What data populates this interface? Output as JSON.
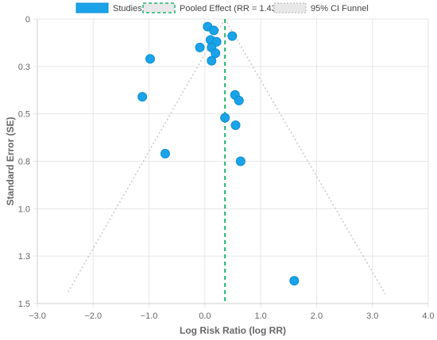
{
  "chart_data": {
    "type": "scatter",
    "title": "",
    "xlabel": "Log Risk Ratio (log RR)",
    "ylabel": "Standard Error (SE)",
    "xlim": [
      -3.0,
      4.0
    ],
    "ylim": [
      0,
      1.5
    ],
    "y_reversed": true,
    "x_ticks": [
      -3.0,
      -2.0,
      -1.0,
      0.0,
      1.0,
      2.0,
      3.0,
      4.0
    ],
    "x_tick_labels": [
      "−3.0",
      "−2.0",
      "−1.0",
      "0.0",
      "1.0",
      "2.0",
      "3.0",
      "4.0"
    ],
    "y_ticks": [
      0,
      0.25,
      0.5,
      0.75,
      1.0,
      1.25,
      1.5
    ],
    "y_tick_labels": [
      "0",
      "0.3",
      "0.5",
      "0.8",
      "1.0",
      "1.3",
      "1.5"
    ],
    "grid": true,
    "legend_position": "top",
    "pooled_effect": 0.36,
    "funnel": {
      "apex": [
        0.36,
        0.0
      ],
      "left_base": [
        -2.47,
        1.45
      ],
      "right_base": [
        3.23,
        1.45
      ]
    },
    "series": [
      {
        "name": "Studies",
        "color": "#1aa3e8",
        "points": [
          {
            "x": 0.05,
            "y": 0.04
          },
          {
            "x": 0.16,
            "y": 0.06
          },
          {
            "x": 0.49,
            "y": 0.09
          },
          {
            "x": 0.1,
            "y": 0.11
          },
          {
            "x": 0.21,
            "y": 0.12
          },
          {
            "x": -0.09,
            "y": 0.15
          },
          {
            "x": 0.12,
            "y": 0.15
          },
          {
            "x": 0.19,
            "y": 0.18
          },
          {
            "x": -0.98,
            "y": 0.21
          },
          {
            "x": 0.12,
            "y": 0.22
          },
          {
            "x": 0.54,
            "y": 0.4
          },
          {
            "x": -1.12,
            "y": 0.41
          },
          {
            "x": 0.61,
            "y": 0.43
          },
          {
            "x": 0.36,
            "y": 0.52
          },
          {
            "x": 0.55,
            "y": 0.56
          },
          {
            "x": -0.71,
            "y": 0.71
          },
          {
            "x": 0.64,
            "y": 0.75
          },
          {
            "x": 1.6,
            "y": 1.38
          }
        ]
      }
    ],
    "legend": [
      {
        "label": "Studies",
        "kind": "box",
        "color": "#1aa3e8"
      },
      {
        "label": "Pooled Effect (RR = 1.43)",
        "kind": "dashed-box",
        "color": "#22b573"
      },
      {
        "label": "95% CI Funnel",
        "kind": "dotted-box",
        "color": "#c8c8c8"
      }
    ]
  }
}
